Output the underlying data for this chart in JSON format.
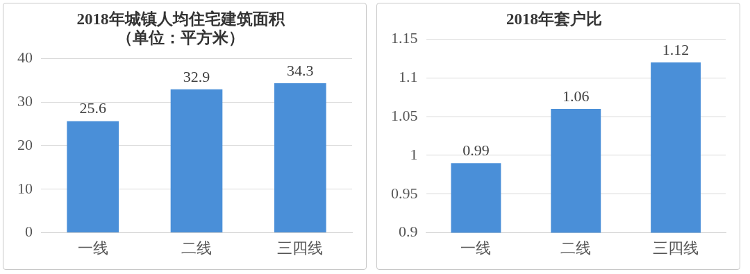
{
  "chart_data": [
    {
      "type": "bar",
      "title": "2018年城镇人均住宅建筑面积",
      "subtitle": "（单位：平方米）",
      "categories": [
        "一线",
        "二线",
        "三四线"
      ],
      "values": [
        25.6,
        32.9,
        34.3
      ],
      "color": "#4a8fd8",
      "ylim": [
        0,
        40
      ],
      "yticks": [
        0,
        10,
        20,
        30,
        40
      ],
      "grid": "y",
      "data_labels": true
    },
    {
      "type": "bar",
      "title": "2018年套户比",
      "categories": [
        "一线",
        "二线",
        "三四线"
      ],
      "values": [
        0.99,
        1.06,
        1.12
      ],
      "color": "#4a8fd8",
      "ylim": [
        0.9,
        1.15
      ],
      "yticks": [
        0.9,
        0.95,
        1,
        1.05,
        1.1,
        1.15
      ],
      "grid": "y",
      "data_labels": true
    }
  ]
}
